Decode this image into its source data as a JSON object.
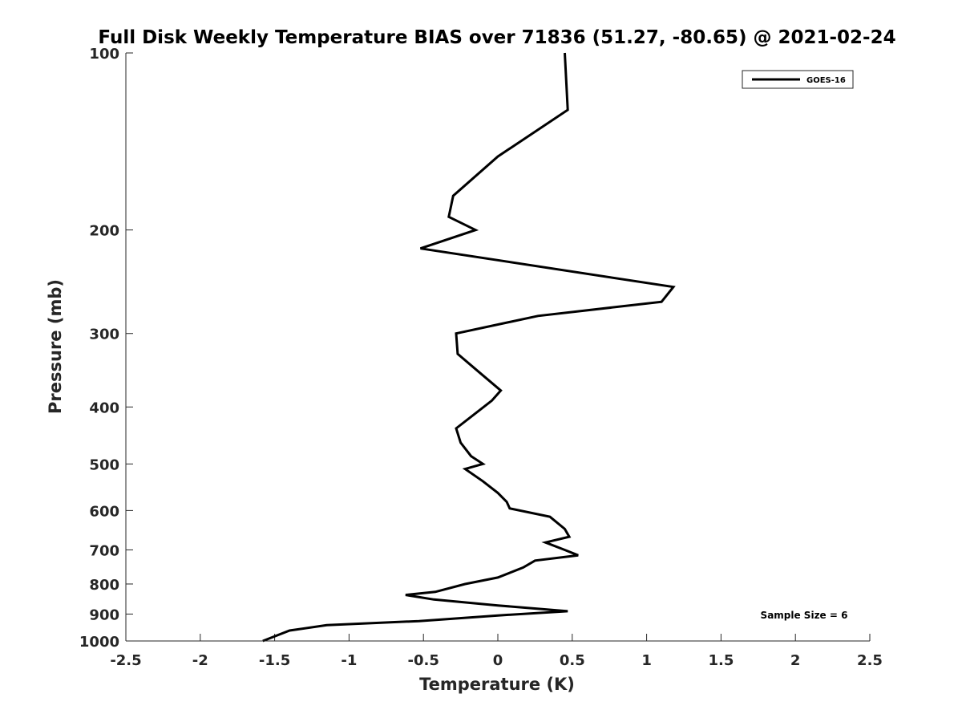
{
  "chart_data": {
    "type": "line",
    "title": "Full Disk Weekly Temperature BIAS over 71836 (51.27, -80.65) @ 2021-02-24",
    "xlabel": "Temperature (K)",
    "ylabel": "Pressure (mb)",
    "xlim": [
      -2.5,
      2.5
    ],
    "ylim": [
      1000,
      100
    ],
    "yscale": "log",
    "y_reversed": true,
    "grid": false,
    "legend_position": "top-right",
    "x_ticks": [
      -2.5,
      -2,
      -1.5,
      -1,
      -0.5,
      0,
      0.5,
      1,
      1.5,
      2,
      2.5
    ],
    "x_tick_labels": [
      "-2.5",
      "-2",
      "-1.5",
      "-1",
      "-0.5",
      "0",
      "0.5",
      "1",
      "1.5",
      "2",
      "2.5"
    ],
    "y_ticks": [
      100,
      200,
      300,
      400,
      500,
      600,
      700,
      800,
      900,
      1000
    ],
    "y_tick_labels": [
      "100",
      "200",
      "300",
      "400",
      "500",
      "600",
      "700",
      "800",
      "900",
      "1000"
    ],
    "series": [
      {
        "name": "GOES-16",
        "color": "#000000",
        "points": [
          {
            "x": 0.45,
            "y": 100
          },
          {
            "x": 0.47,
            "y": 125
          },
          {
            "x": 0.0,
            "y": 150
          },
          {
            "x": -0.3,
            "y": 175
          },
          {
            "x": -0.33,
            "y": 190
          },
          {
            "x": -0.15,
            "y": 200
          },
          {
            "x": -0.52,
            "y": 215
          },
          {
            "x": 1.18,
            "y": 250
          },
          {
            "x": 1.1,
            "y": 265
          },
          {
            "x": 0.27,
            "y": 280
          },
          {
            "x": -0.28,
            "y": 300
          },
          {
            "x": -0.27,
            "y": 325
          },
          {
            "x": -0.12,
            "y": 350
          },
          {
            "x": 0.02,
            "y": 375
          },
          {
            "x": -0.04,
            "y": 390
          },
          {
            "x": -0.15,
            "y": 410
          },
          {
            "x": -0.28,
            "y": 435
          },
          {
            "x": -0.25,
            "y": 460
          },
          {
            "x": -0.18,
            "y": 485
          },
          {
            "x": -0.1,
            "y": 500
          },
          {
            "x": -0.22,
            "y": 510
          },
          {
            "x": -0.1,
            "y": 535
          },
          {
            "x": 0.0,
            "y": 560
          },
          {
            "x": 0.06,
            "y": 580
          },
          {
            "x": 0.08,
            "y": 595
          },
          {
            "x": 0.35,
            "y": 615
          },
          {
            "x": 0.45,
            "y": 645
          },
          {
            "x": 0.48,
            "y": 665
          },
          {
            "x": 0.32,
            "y": 680
          },
          {
            "x": 0.45,
            "y": 700
          },
          {
            "x": 0.54,
            "y": 715
          },
          {
            "x": 0.25,
            "y": 730
          },
          {
            "x": 0.17,
            "y": 750
          },
          {
            "x": 0.0,
            "y": 780
          },
          {
            "x": -0.22,
            "y": 800
          },
          {
            "x": -0.42,
            "y": 825
          },
          {
            "x": -0.62,
            "y": 835
          },
          {
            "x": -0.43,
            "y": 850
          },
          {
            "x": 0.0,
            "y": 870
          },
          {
            "x": 0.47,
            "y": 890
          },
          {
            "x": 0.0,
            "y": 905
          },
          {
            "x": -0.53,
            "y": 925
          },
          {
            "x": -1.15,
            "y": 940
          },
          {
            "x": -1.4,
            "y": 960
          },
          {
            "x": -1.58,
            "y": 1000
          }
        ]
      }
    ],
    "annotations": [
      {
        "text": "Sample Size = 6",
        "position": "bottom-right"
      }
    ]
  }
}
